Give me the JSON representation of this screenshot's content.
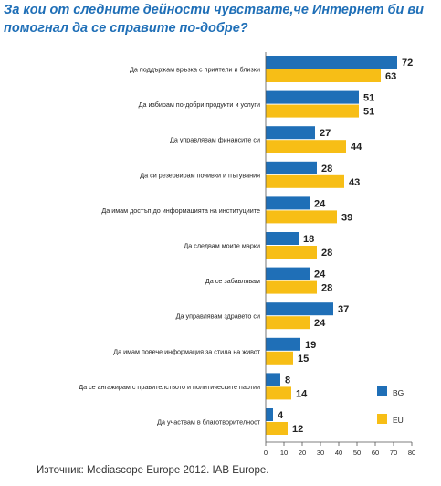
{
  "chart_data": {
    "type": "bar",
    "orientation": "horizontal",
    "title": "За кои от следните дейности чувствате,че Интернет би ви помогнал да се справите по-добре?",
    "categories": [
      "Да поддържам връзка с приятели и близки",
      "Да избирам по-добри продукти и услуги",
      "Да управлявам финансите си",
      "Да си резервирам почивки и пътувания",
      "Да имам достъп до информацията на институциите",
      "Да следвам моите марки",
      "Да се забавлявам",
      "Да управлявам здравето си",
      "Да имам повече информация за стила на живот",
      "Да се ангажирам с правителството и политическите партии",
      "Да участвам в благотворителност"
    ],
    "series": [
      {
        "name": "BG",
        "color": "#1f6fb7",
        "values": [
          72,
          51,
          27,
          28,
          24,
          18,
          24,
          37,
          19,
          8,
          4
        ]
      },
      {
        "name": "EU",
        "color": "#f7be16",
        "values": [
          63,
          51,
          44,
          43,
          39,
          28,
          28,
          24,
          15,
          14,
          12
        ]
      }
    ],
    "xlim": [
      0,
      80
    ],
    "xticks": [
      0,
      10,
      20,
      30,
      40,
      50,
      60,
      70,
      80
    ],
    "legend_position": "right",
    "grid": false
  },
  "source": "Източник: Mediascope Europe 2012. IAB Europe."
}
